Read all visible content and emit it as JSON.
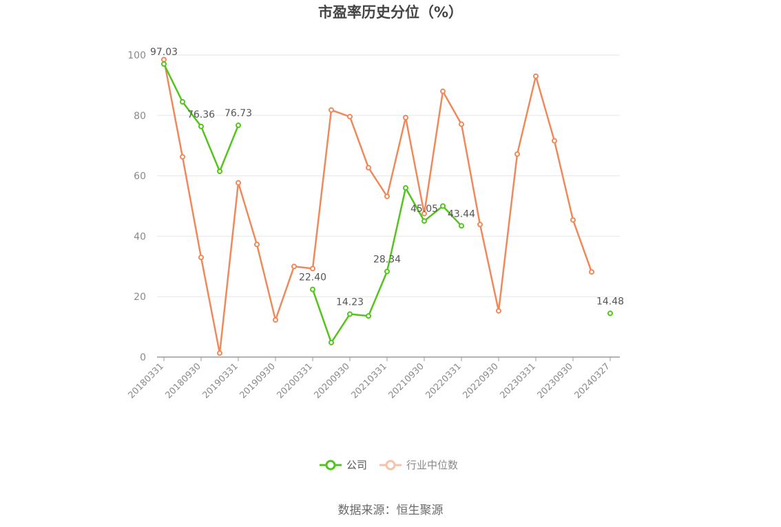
{
  "chart_data": {
    "type": "line",
    "title": "市盈率历史分位（%）",
    "ylim": [
      0,
      100
    ],
    "yticks": [
      0,
      20,
      40,
      60,
      80,
      100
    ],
    "x": [
      "20180331",
      "20180630",
      "20180930",
      "20181231",
      "20190331",
      "20190630",
      "20190930",
      "20191231",
      "20200331",
      "20200630",
      "20200930",
      "20201231",
      "20210331",
      "20210630",
      "20210930",
      "20211231",
      "20220331",
      "20220630",
      "20220930",
      "20221231",
      "20230331",
      "20230630",
      "20230930",
      "20231231",
      "20240327"
    ],
    "xtick_labels": [
      "20180331",
      "20180930",
      "20190331",
      "20190930",
      "20200331",
      "20200930",
      "20210331",
      "20210930",
      "20220331",
      "20220930",
      "20230331",
      "20230930",
      "20240327"
    ],
    "grid": "horizontal",
    "legend_position": "bottom",
    "series": [
      {
        "name": "公司",
        "color": "#52c41a",
        "values": [
          97.03,
          84.5,
          76.36,
          61.5,
          76.73,
          null,
          null,
          null,
          22.4,
          4.8,
          14.23,
          13.6,
          28.34,
          56.0,
          45.05,
          50.0,
          43.44,
          null,
          null,
          null,
          null,
          null,
          null,
          null,
          14.48
        ],
        "labels": {
          "0": "97.03",
          "2": "76.36",
          "4": "76.73",
          "8": "22.40",
          "10": "14.23",
          "12": "28.34",
          "14": "45.05",
          "16": "43.44",
          "24": "14.48"
        }
      },
      {
        "name": "行业中位数",
        "color": "#f0885a",
        "values": [
          98.5,
          66.3,
          33.0,
          1.3,
          57.7,
          37.3,
          12.3,
          30.0,
          29.3,
          81.8,
          79.6,
          62.7,
          53.2,
          79.3,
          47.5,
          88.0,
          77.1,
          43.9,
          15.3,
          67.2,
          93.0,
          71.6,
          45.4,
          28.2,
          null
        ]
      }
    ]
  },
  "legend": {
    "company_label": "公司",
    "industry_label": "行业中位数"
  },
  "source_text": "数据来源：恒生聚源"
}
